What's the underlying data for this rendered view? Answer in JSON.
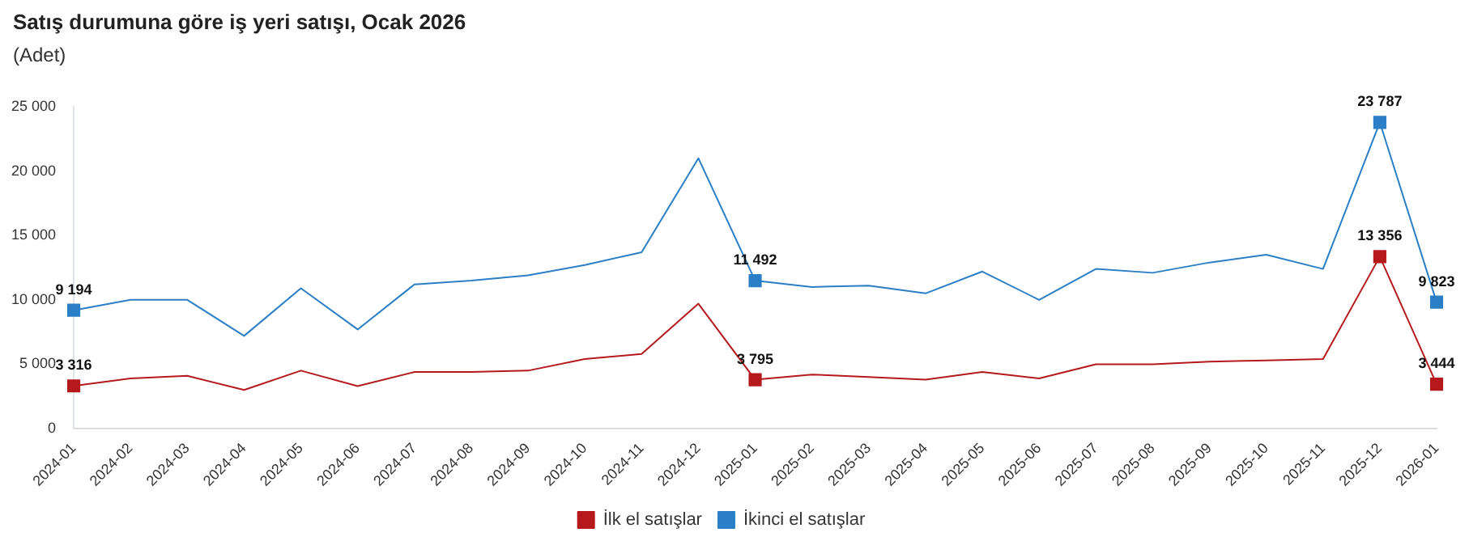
{
  "chart_data": {
    "type": "line",
    "title": "Satış durumuna göre iş yeri satışı, Ocak 2026",
    "subtitle": "(Adet)",
    "categories": [
      "2024-01",
      "2024-02",
      "2024-03",
      "2024-04",
      "2024-05",
      "2024-06",
      "2024-07",
      "2024-08",
      "2024-09",
      "2024-10",
      "2024-11",
      "2024-12",
      "2025-01",
      "2025-02",
      "2025-03",
      "2025-04",
      "2025-05",
      "2025-06",
      "2025-07",
      "2025-08",
      "2025-09",
      "2025-10",
      "2025-11",
      "2025-12",
      "2026-01"
    ],
    "series": [
      {
        "name": "İlk el satışlar",
        "color": "#b5191c",
        "values": [
          3316,
          3900,
          4100,
          3000,
          4500,
          3300,
          4400,
          4400,
          4500,
          5400,
          5800,
          9700,
          3795,
          4200,
          4000,
          3800,
          4400,
          3900,
          5000,
          5000,
          5200,
          5300,
          5400,
          13356,
          3444
        ],
        "value_labels": [
          "3 316",
          null,
          null,
          null,
          null,
          null,
          null,
          null,
          null,
          null,
          null,
          null,
          "3 795",
          null,
          null,
          null,
          null,
          null,
          null,
          null,
          null,
          null,
          null,
          "13 356",
          "3 444"
        ]
      },
      {
        "name": "İkinci el satışlar",
        "color": "#2a7fc6",
        "values": [
          9194,
          10000,
          10000,
          7200,
          10900,
          7700,
          11200,
          11500,
          11900,
          12700,
          13700,
          21000,
          11492,
          11000,
          11100,
          10500,
          12200,
          10000,
          12400,
          12100,
          12900,
          13500,
          12400,
          23787,
          9823
        ],
        "value_labels": [
          "9 194",
          null,
          null,
          null,
          null,
          null,
          null,
          null,
          null,
          null,
          null,
          null,
          "11 492",
          null,
          null,
          null,
          null,
          null,
          null,
          null,
          null,
          null,
          null,
          "23 787",
          "9 823"
        ]
      }
    ],
    "ylim": [
      0,
      25000
    ],
    "yticks": [
      {
        "value": 0,
        "label": "0"
      },
      {
        "value": 5000,
        "label": "5 000"
      },
      {
        "value": 10000,
        "label": "10 000"
      },
      {
        "value": 15000,
        "label": "15 000"
      },
      {
        "value": 20000,
        "label": "20 000"
      },
      {
        "value": 25000,
        "label": "25 000"
      }
    ],
    "grid": false,
    "legend": "bottom",
    "line_style": "solid"
  }
}
